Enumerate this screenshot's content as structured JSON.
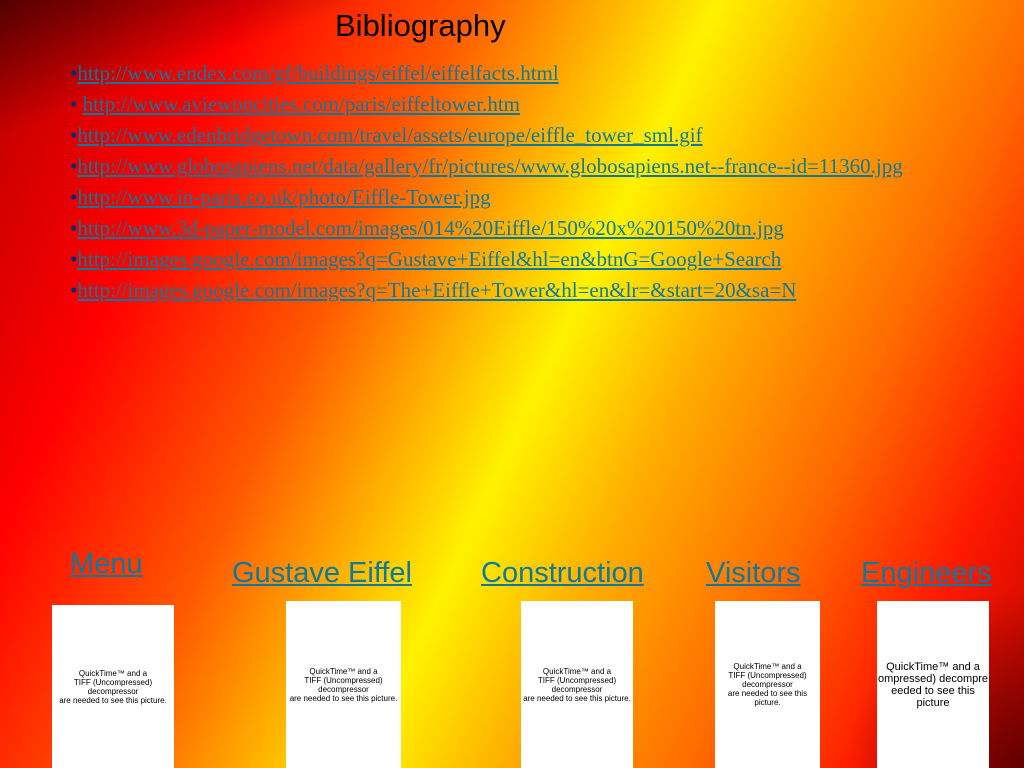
{
  "title": "Bibliography",
  "bibliography": {
    "bullet": "•",
    "items": [
      {
        "text": "http://www.endex.com/gf/buildings/eiffel/eiffelfacts.html"
      },
      {
        "text": "http://www.aviewoncities.com/paris/eiffeltower.htm"
      },
      {
        "text": "http://www.edenbridgetown.com/travel/assets/europe/eiffle_tower_sml.gif"
      },
      {
        "text": "http://www.globosapiens.net/data/gallery/fr/pictures/www.globosapiens.net--france--id=11360.jpg"
      },
      {
        "text": "http://www.in-paris.co.uk/photo/Eiffle-Tower.jpg"
      },
      {
        "text": "http://www.3d-paper-model.com/images/014%20Eiffle/150%20x%20150%20tn.jpg"
      },
      {
        "text": "http://images.google.com/images?q=Gustave+Eiffel&hl=en&btnG=Google+Search"
      },
      {
        "text": "http://images.google.com/images?q=The+Eiffle+Tower&hl=en&lr=&start=20&sa=N"
      }
    ]
  },
  "nav": {
    "menu": "Menu",
    "gustave_eiffel": "Gustave Eiffel",
    "construction": "Construction",
    "visitors": "Visitors",
    "engineers": "Engineers"
  },
  "thumbnails": {
    "thumb1": "QuickTime™ and a\nTIFF (Uncompressed) decompressor\nare needed to see this picture.",
    "thumb2": "QuickTime™ and a\nTIFF (Uncompressed) decompressor\nare needed to see this picture.",
    "thumb3": "QuickTime™ and a\nTIFF (Uncompressed) decompressor\nare needed to see this picture.",
    "thumb4": "QuickTime™ and a\nTIFF (Uncompressed) decompressor\nare needed to see this picture.",
    "thumb5": "QuickTime™ and a\nompressed) decompre\needed to see this picture"
  },
  "colors": {
    "link": "#0b7a9e",
    "bullet": "#002a7a",
    "title": "#000000"
  }
}
